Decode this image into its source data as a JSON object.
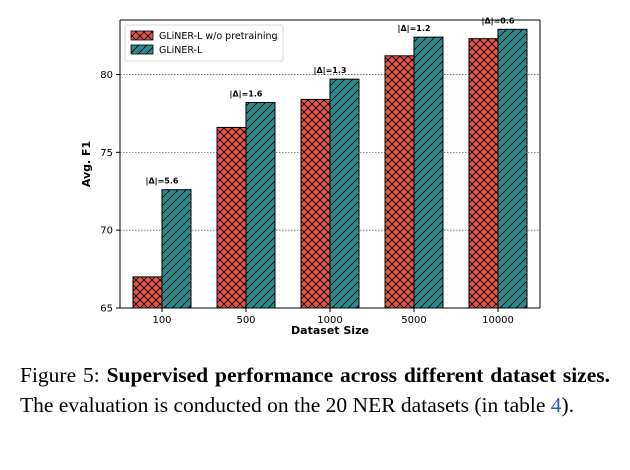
{
  "chart_data": {
    "type": "bar",
    "categories": [
      "100",
      "500",
      "1000",
      "5000",
      "10000"
    ],
    "series": [
      {
        "name": "GLiNER-L w/o pretraining",
        "values": [
          67.0,
          76.6,
          78.4,
          81.2,
          82.3
        ],
        "color": "#e0584d",
        "hatch": "crosshatch"
      },
      {
        "name": "GLiNER-L",
        "values": [
          72.6,
          78.2,
          79.7,
          82.4,
          82.9
        ],
        "color": "#2a8a8c",
        "hatch": "diagonal"
      }
    ],
    "annotations": [
      "|Δ|=5.6",
      "|Δ|=1.6",
      "|Δ|=1.3",
      "|Δ|=1.2",
      "|Δ|=0.6"
    ],
    "xlabel": "Dataset Size",
    "ylabel": "Avg. F1",
    "ylim": [
      65,
      83.5
    ],
    "yticks": [
      65,
      70,
      75,
      80
    ],
    "grid": "horizontal dotted at y ticks",
    "legend_position": "top-left"
  },
  "caption": {
    "label": "Figure 5:",
    "bold_text": "Supervised performance across different dataset sizes.",
    "text_before_ref": "The evaluation is conducted on the 20 NER datasets (in table",
    "ref": "4",
    "text_after_ref": ")."
  }
}
